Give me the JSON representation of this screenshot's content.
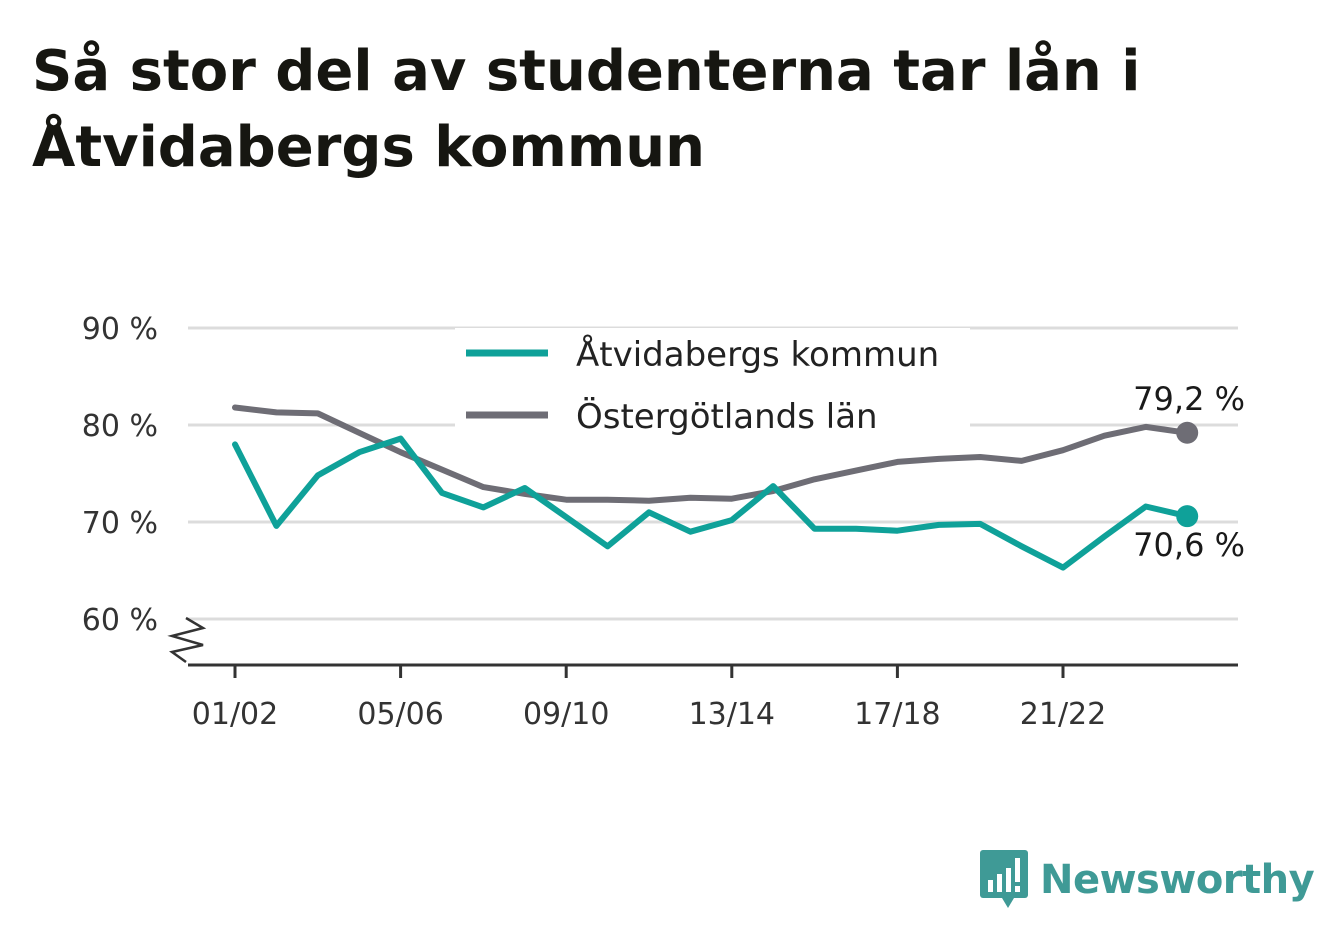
{
  "title": "Så stor del av studenterna tar lån i Åtvidabergs kommun",
  "brand": {
    "name": "Newsworthy",
    "color": "#3f9a96",
    "icon": "bar-chart-speech-bubble-icon"
  },
  "chart_data": {
    "type": "line",
    "title": "Så stor del av studenterna tar lån i Åtvidabergs kommun",
    "xlabel": "",
    "ylabel": "",
    "ylim": [
      55.5,
      90
    ],
    "y_ticks": [
      {
        "value": 60,
        "label": "60 %"
      },
      {
        "value": 70,
        "label": "70 %"
      },
      {
        "value": 80,
        "label": "80 %"
      },
      {
        "value": 90,
        "label": "90 %"
      }
    ],
    "y_axis_break": true,
    "x": [
      "01/02",
      "02/03",
      "03/04",
      "04/05",
      "05/06",
      "06/07",
      "07/08",
      "08/09",
      "09/10",
      "10/11",
      "11/12",
      "12/13",
      "13/14",
      "14/15",
      "15/16",
      "16/17",
      "17/18",
      "18/19",
      "19/20",
      "20/21",
      "21/22",
      "22/23",
      "23/24",
      "24/25"
    ],
    "x_ticks": [
      {
        "index": 0,
        "label": "01/02"
      },
      {
        "index": 4,
        "label": "05/06"
      },
      {
        "index": 8,
        "label": "09/10"
      },
      {
        "index": 12,
        "label": "13/14"
      },
      {
        "index": 16,
        "label": "17/18"
      },
      {
        "index": 20,
        "label": "21/22"
      }
    ],
    "grid": true,
    "legend_position": "top-center",
    "series": [
      {
        "name": "Åtvidabergs kommun",
        "color": "#0fa199",
        "values": [
          78.0,
          69.6,
          74.8,
          77.2,
          78.6,
          73.0,
          71.5,
          73.5,
          70.5,
          67.5,
          71.0,
          69.0,
          70.2,
          73.7,
          69.3,
          69.3,
          69.1,
          69.7,
          69.8,
          67.5,
          65.3,
          68.5,
          71.6,
          70.6
        ],
        "end_label": "70,6 %"
      },
      {
        "name": "Östergötlands län",
        "color": "#6e6d75",
        "values": [
          81.8,
          81.3,
          81.2,
          79.2,
          77.2,
          75.4,
          73.6,
          72.9,
          72.3,
          72.3,
          72.2,
          72.5,
          72.4,
          73.2,
          74.4,
          75.3,
          76.2,
          76.5,
          76.7,
          76.3,
          77.4,
          78.9,
          79.8,
          79.2
        ],
        "end_label": "79,2 %"
      }
    ]
  }
}
